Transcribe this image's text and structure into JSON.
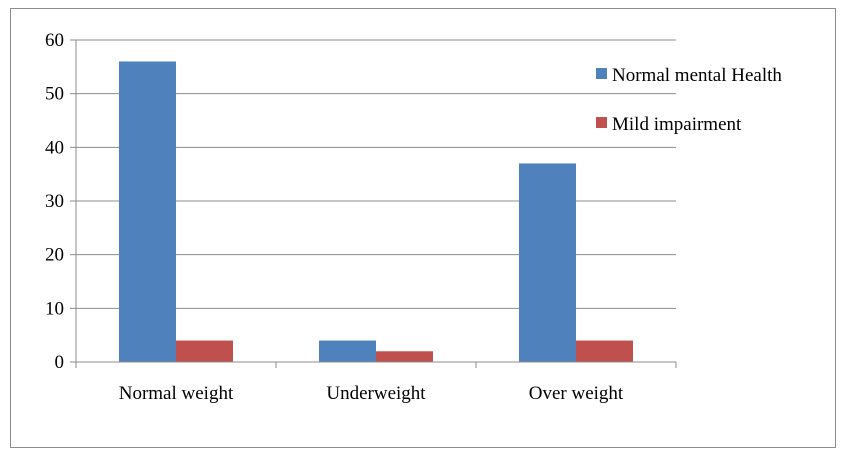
{
  "chart_data": {
    "type": "bar",
    "title": "",
    "xlabel": "",
    "ylabel": "",
    "categories": [
      "Normal weight",
      "Underweight",
      "Over weight"
    ],
    "series": [
      {
        "name": "Normal mental Health",
        "values": [
          56,
          4,
          37
        ],
        "color": "#4f81bd"
      },
      {
        "name": "Mild impairment",
        "values": [
          4,
          2,
          4
        ],
        "color": "#c0504d"
      }
    ],
    "ylim": [
      0,
      60
    ],
    "yticks": [
      "0",
      "10",
      "20",
      "30",
      "40",
      "50",
      "60"
    ],
    "grid": true,
    "legend_position": "right"
  }
}
